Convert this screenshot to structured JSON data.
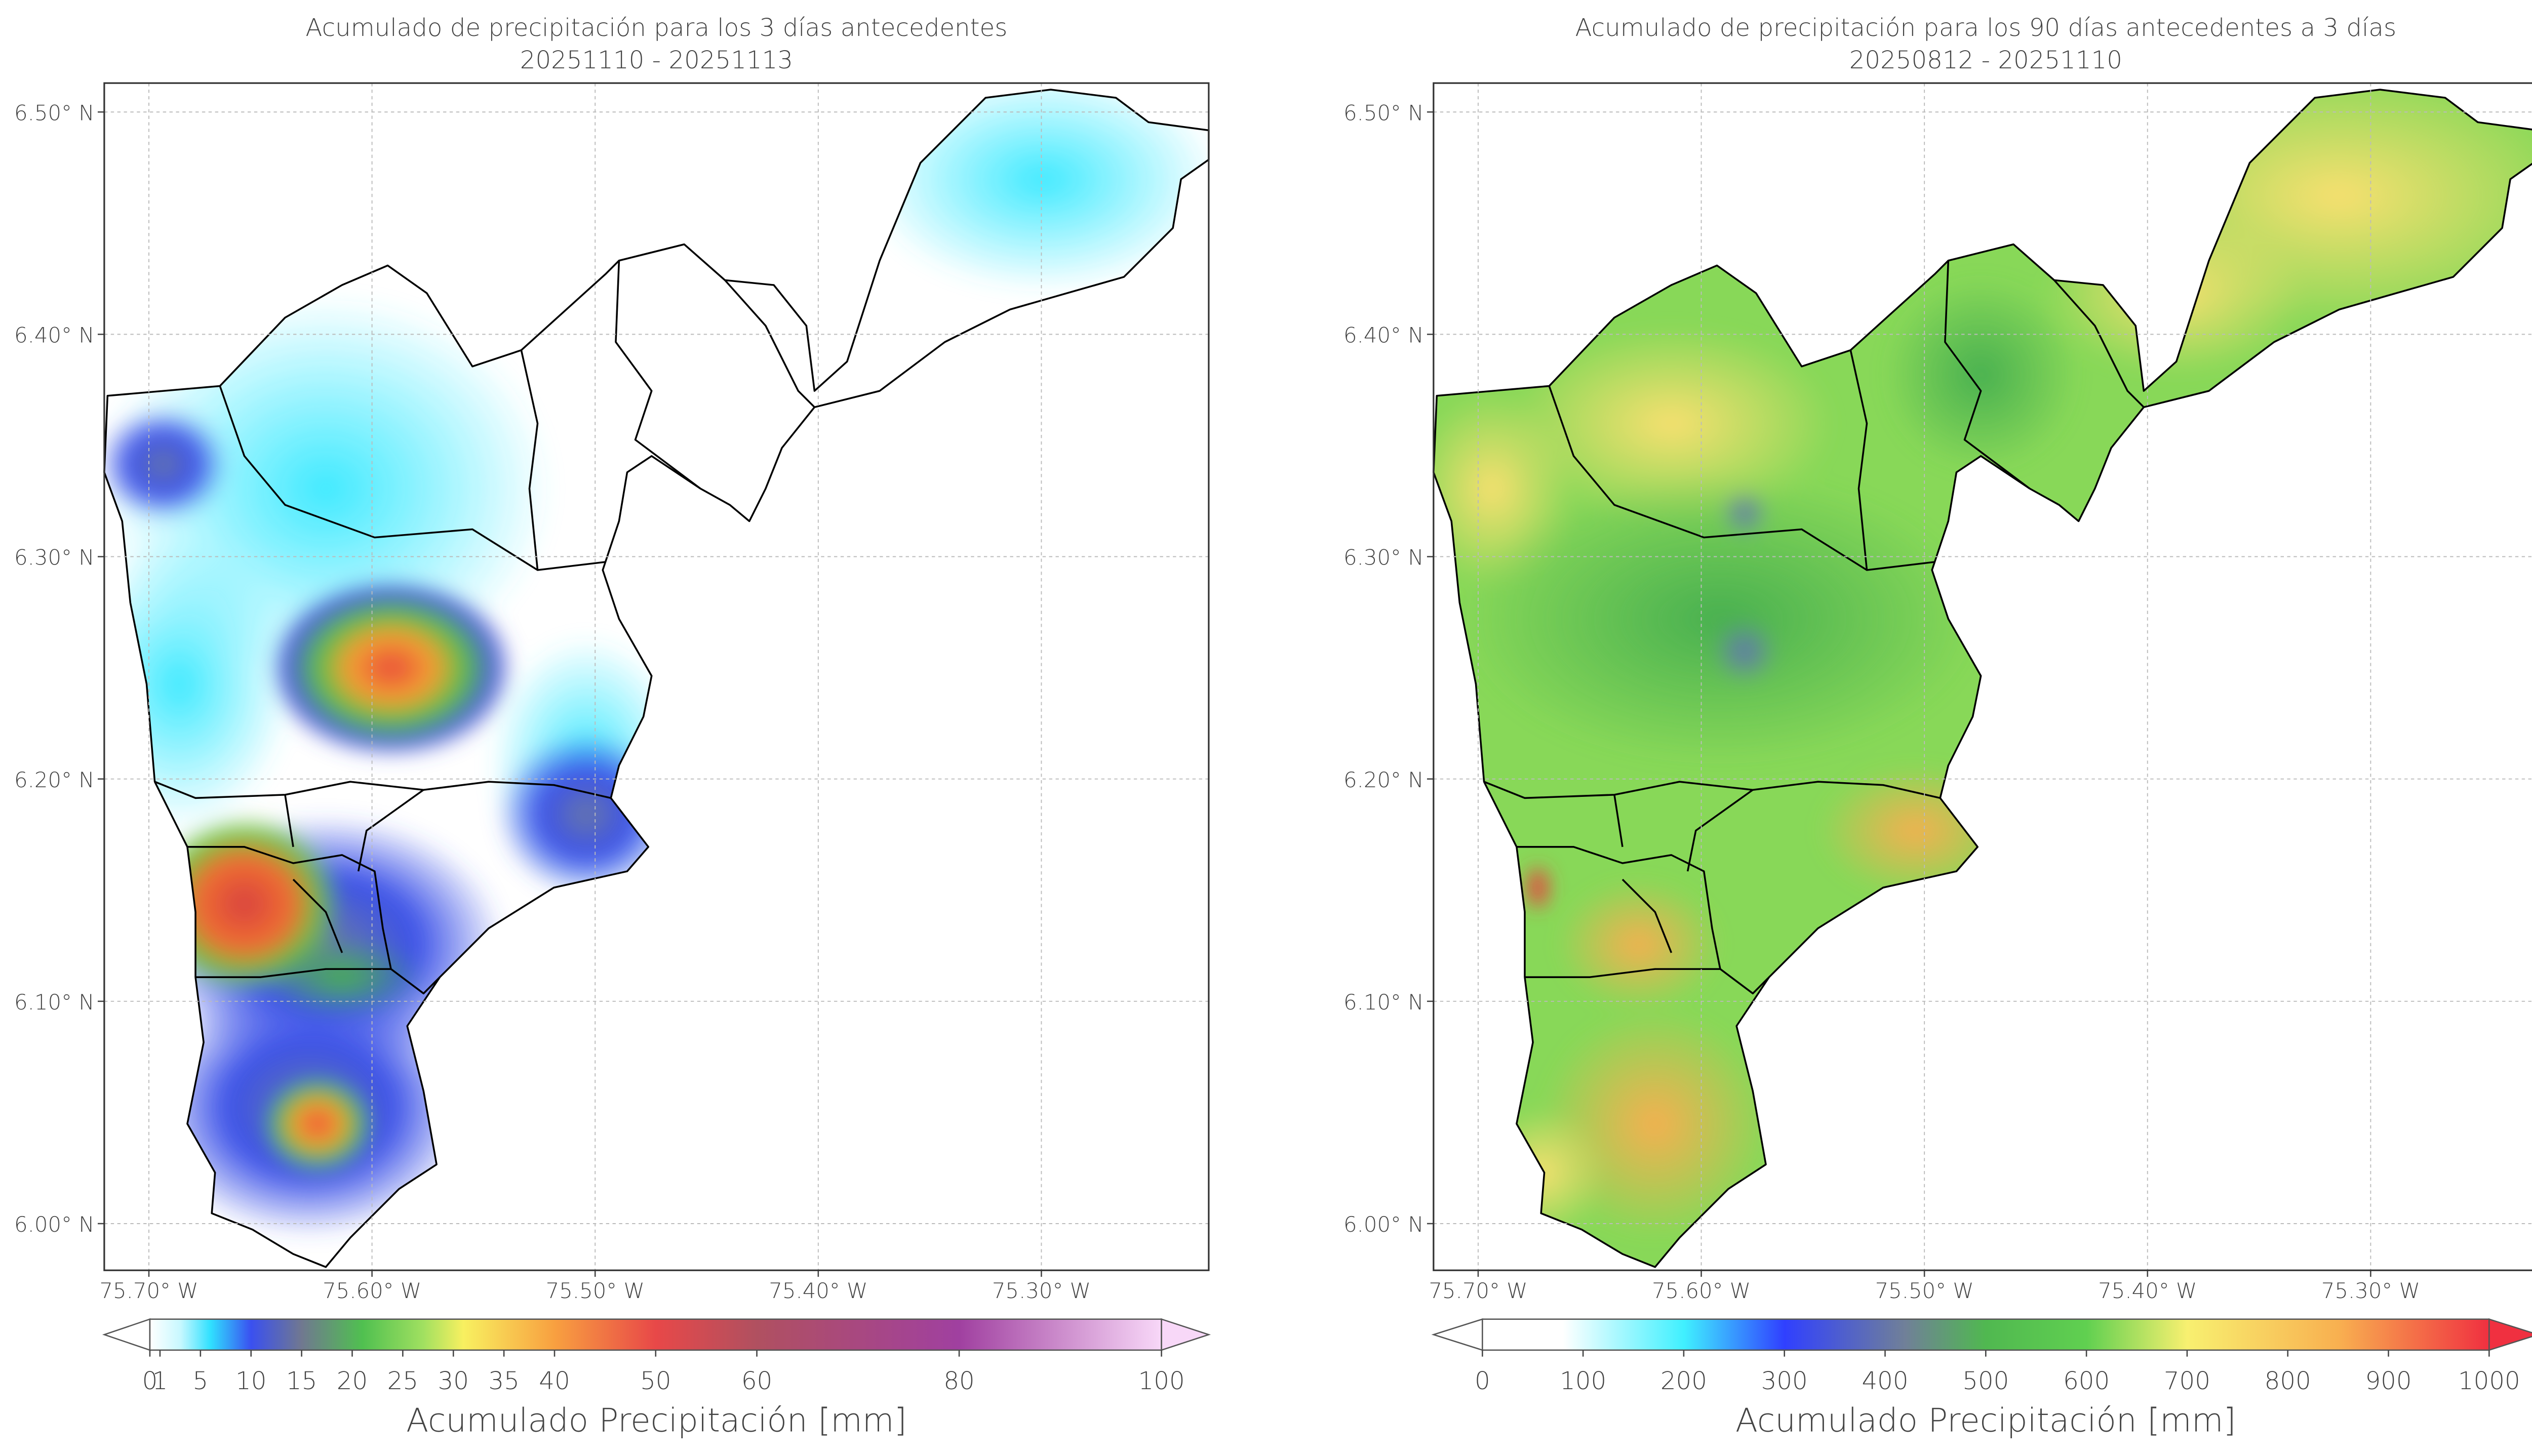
{
  "maps": [
    {
      "title": "Acumulado de precipitación para los 3 días antecedentes",
      "subtitle": "20251110 - 20251113",
      "xlim": [
        -75.72,
        -75.225
      ],
      "ylim": [
        5.979,
        6.513
      ],
      "grid": true,
      "xticks": [
        {
          "value": -75.7,
          "label": "75.70° W"
        },
        {
          "value": -75.6,
          "label": "75.60° W"
        },
        {
          "value": -75.5,
          "label": "75.50° W"
        },
        {
          "value": -75.4,
          "label": "75.40° W"
        },
        {
          "value": -75.3,
          "label": "75.30° W"
        }
      ],
      "yticks": [
        {
          "value": 6.5,
          "label": "6.50° N"
        },
        {
          "value": 6.4,
          "label": "6.40° N"
        },
        {
          "value": 6.3,
          "label": "6.30° N"
        },
        {
          "value": 6.2,
          "label": "6.20° N"
        },
        {
          "value": 6.1,
          "label": "6.10° N"
        },
        {
          "value": 6.0,
          "label": "6.00° N"
        }
      ],
      "colorbar": {
        "label": "Acumulado Precipitación [mm]",
        "lim": [
          0,
          100
        ],
        "ticks": [
          0,
          1,
          5,
          10,
          15,
          20,
          25,
          30,
          35,
          40,
          50,
          60,
          80,
          100
        ]
      }
    },
    {
      "title": "Acumulado de precipitación para los 90 días antecedentes a 3 días",
      "subtitle": "20250812 - 20251110",
      "xlim": [
        -75.72,
        -75.225
      ],
      "ylim": [
        5.979,
        6.513
      ],
      "grid": true,
      "xticks": [
        {
          "value": -75.7,
          "label": "75.70° W"
        },
        {
          "value": -75.6,
          "label": "75.60° W"
        },
        {
          "value": -75.5,
          "label": "75.50° W"
        },
        {
          "value": -75.4,
          "label": "75.40° W"
        },
        {
          "value": -75.3,
          "label": "75.30° W"
        }
      ],
      "yticks": [
        {
          "value": 6.5,
          "label": "6.50° N"
        },
        {
          "value": 6.4,
          "label": "6.40° N"
        },
        {
          "value": 6.3,
          "label": "6.30° N"
        },
        {
          "value": 6.2,
          "label": "6.20° N"
        },
        {
          "value": 6.1,
          "label": "6.10° N"
        },
        {
          "value": 6.0,
          "label": "6.00° N"
        }
      ],
      "colorbar": {
        "label": "Acumulado Precipitación [mm]",
        "lim": [
          0,
          1000
        ],
        "ticks": [
          0,
          100,
          200,
          300,
          400,
          500,
          600,
          700,
          800,
          900,
          1000
        ]
      }
    }
  ]
}
